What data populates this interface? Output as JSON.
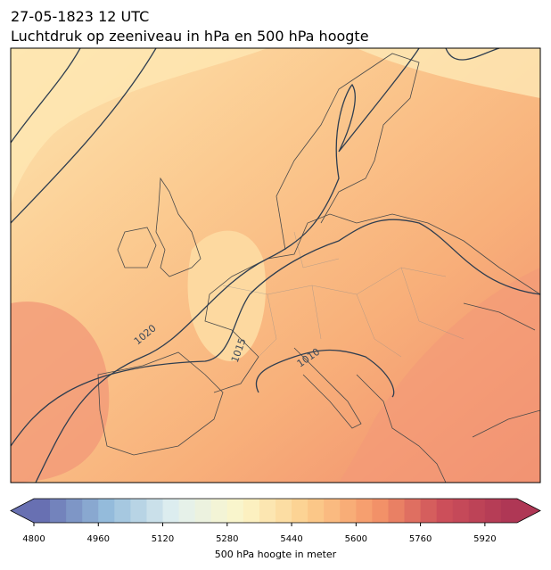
{
  "header": {
    "date_line": "27-05-1823 12 UTC",
    "title": "Luchtdruk op zeeniveau in hPa en 500 hPa hoogte"
  },
  "map": {
    "contour_labels": [
      1020,
      1015,
      1010
    ]
  },
  "colorbar": {
    "range": [
      4800,
      6000
    ],
    "ticks": [
      4800,
      4960,
      5120,
      5280,
      5440,
      5600,
      5760,
      5920
    ],
    "label": "500 hPa hoogte in meter"
  }
}
